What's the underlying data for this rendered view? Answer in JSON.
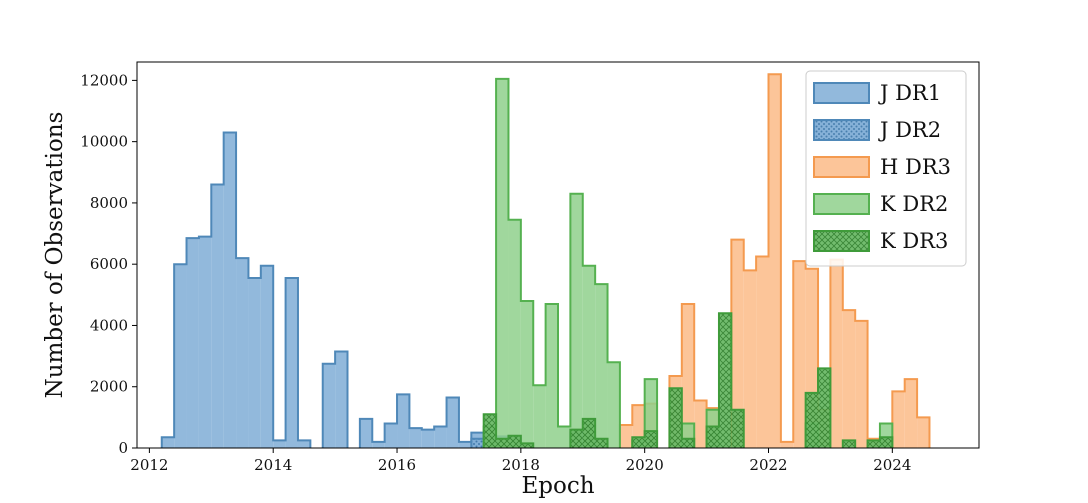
{
  "chart_data": {
    "type": "histogram",
    "xlabel": "Epoch",
    "ylabel": "Number of Observations",
    "xlim": [
      2011.8,
      2025.4
    ],
    "ylim": [
      0,
      12600
    ],
    "x_ticks": [
      2012,
      2014,
      2016,
      2018,
      2020,
      2022,
      2024
    ],
    "y_ticks": [
      0,
      2000,
      4000,
      6000,
      8000,
      10000,
      12000
    ],
    "grid": false,
    "legend_position": "top-right",
    "bin_width": 0.2,
    "series": [
      {
        "name": "J DR1",
        "color": "#7fadd6",
        "edge": "#4f88b8",
        "hatch": "none",
        "bins": [
          [
            2012.2,
            350
          ],
          [
            2012.4,
            6000
          ],
          [
            2012.6,
            6850
          ],
          [
            2012.8,
            6900
          ],
          [
            2013.0,
            8600
          ],
          [
            2013.2,
            10300
          ],
          [
            2013.4,
            6200
          ],
          [
            2013.6,
            5550
          ],
          [
            2013.8,
            5950
          ],
          [
            2014.0,
            250
          ],
          [
            2014.2,
            5550
          ],
          [
            2014.4,
            250
          ],
          [
            2014.8,
            2750
          ],
          [
            2015.0,
            3150
          ],
          [
            2015.4,
            950
          ],
          [
            2015.6,
            200
          ],
          [
            2015.8,
            800
          ],
          [
            2016.0,
            1750
          ],
          [
            2016.2,
            650
          ],
          [
            2016.4,
            600
          ],
          [
            2016.6,
            700
          ],
          [
            2016.8,
            1650
          ],
          [
            2017.0,
            200
          ],
          [
            2017.2,
            500
          ]
        ]
      },
      {
        "name": "J DR2",
        "color": "#7fadd6",
        "edge": "#4f88b8",
        "hatch": "dots",
        "bins": [
          [
            2017.2,
            300
          ],
          [
            2017.4,
            400
          ],
          [
            2017.6,
            380
          ],
          [
            2017.8,
            350
          ],
          [
            2018.8,
            500
          ],
          [
            2019.0,
            400
          ]
        ]
      },
      {
        "name": "H DR3",
        "color": "#fcbb87",
        "edge": "#f49a4f",
        "hatch": "none",
        "bins": [
          [
            2019.6,
            750
          ],
          [
            2019.8,
            1400
          ],
          [
            2020.0,
            1450
          ],
          [
            2020.4,
            2350
          ],
          [
            2020.6,
            4700
          ],
          [
            2020.8,
            1550
          ],
          [
            2021.0,
            1300
          ],
          [
            2021.4,
            6800
          ],
          [
            2021.6,
            5800
          ],
          [
            2021.8,
            6250
          ],
          [
            2022.0,
            12200
          ],
          [
            2022.2,
            200
          ],
          [
            2022.4,
            6100
          ],
          [
            2022.6,
            5850
          ],
          [
            2022.8,
            1250
          ],
          [
            2023.0,
            6150
          ],
          [
            2023.2,
            4500
          ],
          [
            2023.4,
            4150
          ],
          [
            2023.6,
            300
          ],
          [
            2023.8,
            300
          ],
          [
            2024.0,
            1850
          ],
          [
            2024.2,
            2250
          ],
          [
            2024.4,
            1000
          ]
        ]
      },
      {
        "name": "K DR2",
        "color": "#8fd08c",
        "edge": "#55b150",
        "hatch": "none",
        "bins": [
          [
            2017.4,
            700
          ],
          [
            2017.6,
            12050
          ],
          [
            2017.8,
            7450
          ],
          [
            2018.0,
            4800
          ],
          [
            2018.2,
            2050
          ],
          [
            2018.4,
            4700
          ],
          [
            2018.6,
            700
          ],
          [
            2018.8,
            8300
          ],
          [
            2019.0,
            5950
          ],
          [
            2019.2,
            5350
          ],
          [
            2019.4,
            2800
          ],
          [
            2019.8,
            250
          ],
          [
            2020.0,
            2250
          ],
          [
            2020.6,
            800
          ],
          [
            2021.0,
            1250
          ],
          [
            2022.6,
            800
          ],
          [
            2023.8,
            800
          ]
        ]
      },
      {
        "name": "K DR3",
        "color": "#6ab866",
        "edge": "#3f9b3a",
        "hatch": "cross",
        "bins": [
          [
            2017.4,
            1100
          ],
          [
            2017.6,
            300
          ],
          [
            2017.8,
            400
          ],
          [
            2018.0,
            150
          ],
          [
            2018.8,
            600
          ],
          [
            2019.0,
            950
          ],
          [
            2019.2,
            300
          ],
          [
            2019.8,
            350
          ],
          [
            2020.0,
            550
          ],
          [
            2020.4,
            1950
          ],
          [
            2020.6,
            300
          ],
          [
            2021.0,
            700
          ],
          [
            2021.2,
            4400
          ],
          [
            2021.4,
            1250
          ],
          [
            2022.6,
            1800
          ],
          [
            2022.8,
            2600
          ],
          [
            2023.2,
            250
          ],
          [
            2023.6,
            250
          ],
          [
            2023.8,
            350
          ]
        ]
      }
    ]
  }
}
